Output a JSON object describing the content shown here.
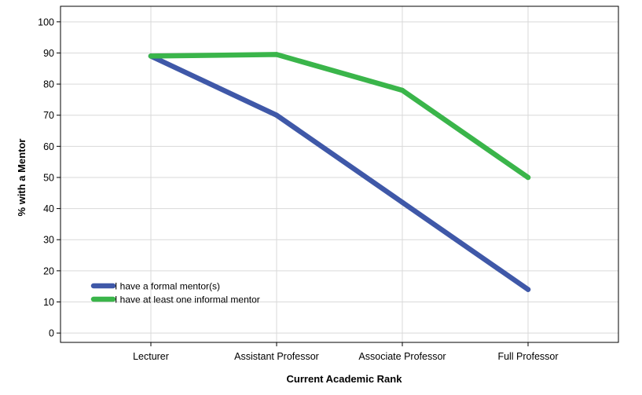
{
  "chart_data": {
    "type": "line",
    "title": "",
    "xlabel": "Current Academic Rank",
    "ylabel": "% with a Mentor",
    "categories": [
      "Lecturer",
      "Assistant Professor",
      "Associate Professor",
      "Full Professor"
    ],
    "ylim": [
      -3,
      105
    ],
    "yticks": [
      "0",
      "10",
      "20",
      "30",
      "40",
      "50",
      "60",
      "70",
      "80",
      "90",
      "100"
    ],
    "grid": true,
    "legend_position": "bottom-left",
    "series": [
      {
        "name": "I have a formal mentor(s)",
        "color": "#3f58a8",
        "values": [
          89,
          70,
          42,
          14
        ]
      },
      {
        "name": "I have at least one informal mentor",
        "color": "#3ab54a",
        "values": [
          89,
          89.5,
          78,
          50
        ]
      }
    ]
  }
}
